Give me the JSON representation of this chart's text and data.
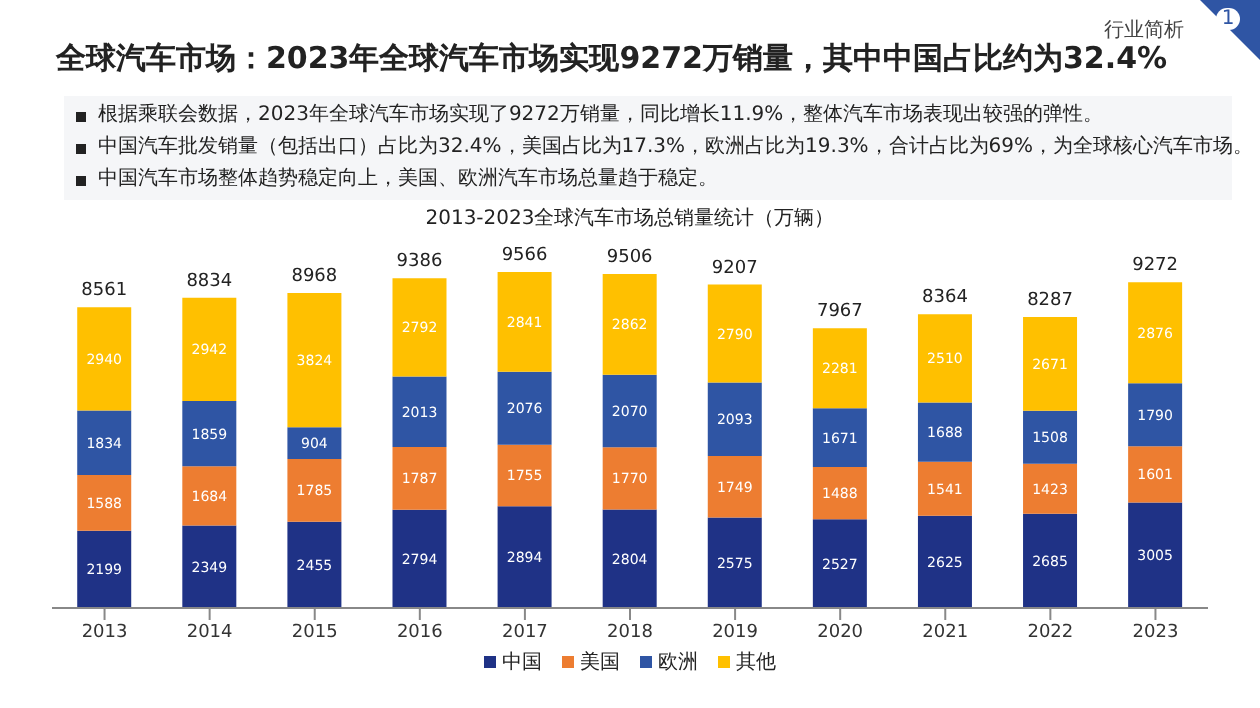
{
  "chart_data": {
    "type": "bar",
    "title": "全球汽车市场：2023年全球汽车市场实现9272万销量，其中中国占比约为32.4%",
    "subtitle": "2013-2023全球汽车市场总销量统计（万辆）",
    "annotations": [
      "行业简析",
      "1",
      "根据乘联会数据，2023年全球汽车市场实现了9272万销量，同比增长11.9%，整体汽车市场表现出较强的弹性。",
      "中国汽车批发销量（包括出口）占比为32.4%，美国占比为17.3%，欧洲占比为19.3%，合计占比为69%，为全球核心汽车市场。",
      "中国汽车市场整体趋势稳定向上，美国、欧洲汽车市场总量趋于稳定。"
    ],
    "categories": [
      "2013",
      "2014",
      "2015",
      "2016",
      "2017",
      "2018",
      "2019",
      "2020",
      "2021",
      "2022",
      "2023"
    ],
    "stacked": true,
    "data_labels": true,
    "legend": "bottom",
    "tick_labels": "x",
    "series": [
      {
        "name": "中国",
        "color": "#1f3286",
        "values": [
          2199,
          2349,
          2455,
          2794,
          2894,
          2804,
          2575,
          2527,
          2625,
          2685,
          3005
        ]
      },
      {
        "name": "美国",
        "color": "#ed7d31",
        "values": [
          1588,
          1684,
          1785,
          1787,
          1755,
          1770,
          1749,
          1488,
          1541,
          1423,
          1601
        ]
      },
      {
        "name": "欧洲",
        "color": "#2f55a4",
        "values": [
          1834,
          1859,
          904,
          2013,
          2076,
          2070,
          2093,
          1671,
          1688,
          1508,
          1790
        ]
      },
      {
        "name": "其他",
        "color": "#ffc000",
        "values": [
          2940,
          2942,
          3824,
          2792,
          2841,
          2862,
          2790,
          2281,
          2510,
          2671,
          2876
        ]
      }
    ],
    "totals": [
      "8561",
      "8834",
      "8968",
      "9386",
      "9566",
      "9506",
      "9207",
      "7967",
      "8364",
      "8287",
      "9272"
    ]
  }
}
